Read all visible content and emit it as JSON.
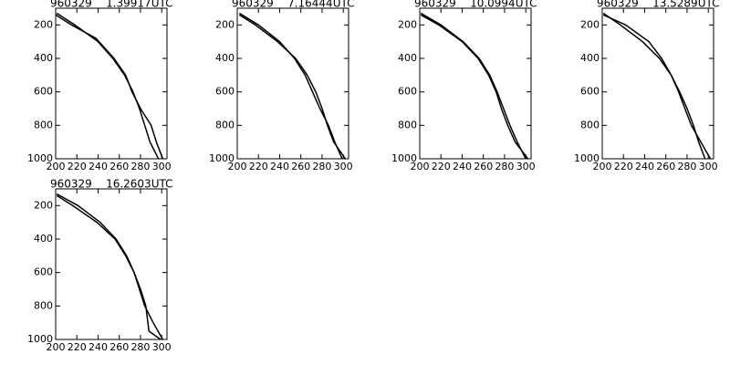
{
  "chart_data": [
    {
      "type": "line",
      "title": "960329    1.39917UTC",
      "xlim": [
        200,
        305
      ],
      "ylim": [
        1000,
        100
      ],
      "xticks": [
        200,
        220,
        240,
        260,
        280,
        300
      ],
      "yticks": [
        200,
        400,
        600,
        800,
        1000
      ],
      "series": [
        {
          "color": "#000000",
          "x": [
            201,
            218,
            240,
            254,
            265,
            273,
            279,
            284,
            289,
            297
          ],
          "values": [
            130,
            200,
            300,
            400,
            500,
            600,
            700,
            800,
            900,
            1000
          ]
        },
        {
          "color": "#000000",
          "x": [
            200,
            215,
            238,
            255,
            266,
            272,
            280,
            290,
            295,
            301
          ],
          "values": [
            140,
            200,
            280,
            400,
            500,
            600,
            700,
            800,
            900,
            1000
          ]
        }
      ]
    },
    {
      "type": "line",
      "title": "960329    7.16444UTC",
      "xlim": [
        200,
        305
      ],
      "ylim": [
        1000,
        100
      ],
      "xticks": [
        200,
        220,
        240,
        260,
        280,
        300
      ],
      "yticks": [
        200,
        400,
        600,
        800,
        1000
      ],
      "series": [
        {
          "color": "#000000",
          "x": [
            202,
            220,
            240,
            254,
            264,
            271,
            278,
            286,
            292,
            299
          ],
          "values": [
            130,
            200,
            300,
            400,
            500,
            600,
            700,
            800,
            900,
            1000
          ]
        },
        {
          "color": "#000000",
          "x": [
            202,
            217,
            238,
            255,
            266,
            274,
            280,
            285,
            291,
            302
          ],
          "values": [
            140,
            200,
            300,
            400,
            500,
            600,
            700,
            800,
            900,
            1000
          ]
        }
      ]
    },
    {
      "type": "line",
      "title": "960329    10.0994UTC",
      "xlim": [
        200,
        305
      ],
      "ylim": [
        1000,
        100
      ],
      "xticks": [
        200,
        220,
        240,
        260,
        280,
        300
      ],
      "yticks": [
        200,
        400,
        600,
        800,
        1000
      ],
      "series": [
        {
          "color": "#000000",
          "x": [
            201,
            220,
            241,
            256,
            266,
            273,
            279,
            285,
            292,
            300
          ],
          "values": [
            130,
            200,
            300,
            400,
            500,
            600,
            700,
            800,
            900,
            1000
          ]
        },
        {
          "color": "#000000",
          "x": [
            201,
            218,
            240,
            255,
            265,
            272,
            277,
            283,
            290,
            302
          ],
          "values": [
            140,
            200,
            300,
            400,
            500,
            600,
            700,
            800,
            900,
            1000
          ]
        }
      ]
    },
    {
      "type": "line",
      "title": "960329    13.5289UTC",
      "xlim": [
        200,
        305
      ],
      "ylim": [
        1000,
        100
      ],
      "xticks": [
        200,
        220,
        240,
        260,
        280,
        300
      ],
      "yticks": [
        200,
        400,
        600,
        800,
        1000
      ],
      "series": [
        {
          "color": "#000000",
          "x": [
            201,
            217,
            238,
            254,
            265,
            273,
            280,
            286,
            291,
            297
          ],
          "values": [
            130,
            200,
            300,
            400,
            500,
            600,
            700,
            800,
            900,
            1000
          ]
        },
        {
          "color": "#000000",
          "x": [
            201,
            222,
            244,
            256,
            265,
            272,
            278,
            284,
            293,
            302
          ],
          "values": [
            140,
            200,
            300,
            400,
            500,
            600,
            700,
            800,
            900,
            1000
          ]
        }
      ]
    },
    {
      "type": "line",
      "title": "960329    16.2603UTC",
      "xlim": [
        200,
        305
      ],
      "ylim": [
        1000,
        100
      ],
      "xticks": [
        200,
        220,
        240,
        260,
        280,
        300
      ],
      "yticks": [
        200,
        400,
        600,
        800,
        1000
      ],
      "series": [
        {
          "color": "#000000",
          "x": [
            201,
            221,
            242,
            257,
            267,
            274,
            280,
            285,
            288,
            299
          ],
          "values": [
            130,
            200,
            300,
            400,
            500,
            600,
            700,
            800,
            950,
            1000
          ]
        },
        {
          "color": "#000000",
          "x": [
            201,
            216,
            239,
            256,
            266,
            274,
            279,
            284,
            292,
            301
          ],
          "values": [
            140,
            200,
            300,
            400,
            500,
            600,
            700,
            800,
            900,
            1000
          ]
        }
      ]
    }
  ]
}
